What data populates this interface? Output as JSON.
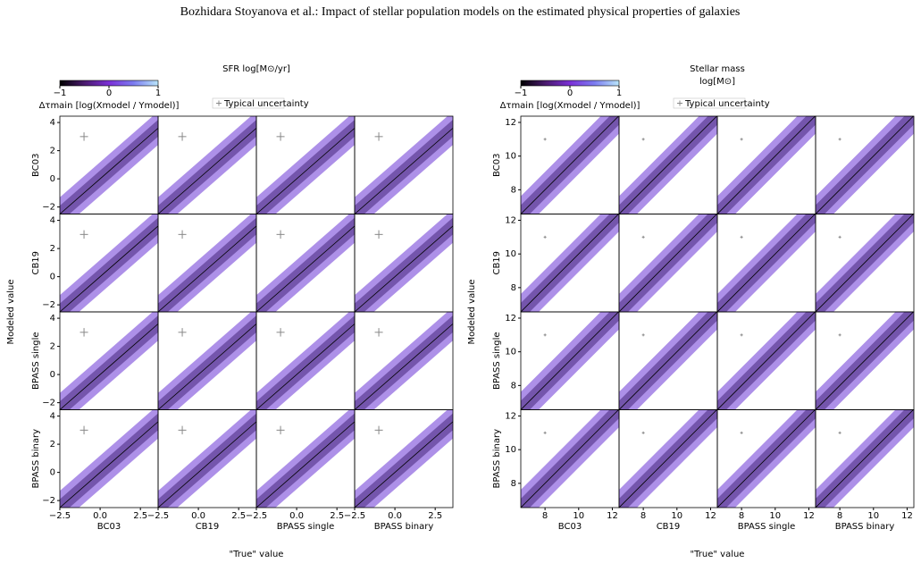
{
  "header": {
    "title": "Bozhidara Stoyanova  et al.: Impact of stellar population models on the estimated physical properties of galaxies"
  },
  "chart_data": [
    {
      "type": "scatter",
      "title_lines": [
        "SFR log[M⊙/yr]"
      ],
      "xlabel": "\"True\" value",
      "ylabel": "Modeled value",
      "row_labels": [
        "BC03",
        "CB19",
        "BPASS single",
        "BPASS binary"
      ],
      "col_labels": [
        "BC03",
        "CB19",
        "BPASS single",
        "BPASS binary"
      ],
      "xlim": [
        -2.5,
        3.6
      ],
      "ylim": [
        -2.5,
        4.45
      ],
      "xticks": [
        {
          "value": -2.5,
          "label": "−2.5"
        },
        {
          "value": 0,
          "label": "0.0"
        },
        {
          "value": 2.5,
          "label": "2.5"
        }
      ],
      "yticks": [
        {
          "value": -2,
          "label": "−2"
        },
        0,
        2,
        4
      ],
      "uncertainty": {
        "label": "Typical uncertainty",
        "x": -1,
        "y": 3,
        "xerr": 0.25,
        "yerr": 0.3
      },
      "colorbar": {
        "label": "Δτmain [log(Xmodel / Ymodel)]",
        "lim": [
          -1,
          1
        ],
        "ticks": [
          {
            "value": -1,
            "label": "−1"
          },
          0,
          1
        ],
        "colors": [
          "#000000",
          "#4a1a6e",
          "#7b2fd6",
          "#7c7cf0",
          "#b9e6fa"
        ]
      }
    },
    {
      "type": "scatter",
      "title_lines": [
        "Stellar mass",
        "log[M⊙]"
      ],
      "xlabel": "\"True\" value",
      "ylabel": "Modeled value",
      "row_labels": [
        "BC03",
        "CB19",
        "BPASS single",
        "BPASS binary"
      ],
      "col_labels": [
        "BC03",
        "CB19",
        "BPASS single",
        "BPASS binary"
      ],
      "xlim": [
        6.56,
        12.4
      ],
      "ylim": [
        6.56,
        12.37
      ],
      "xticks": [
        8,
        10,
        12
      ],
      "yticks": [
        8,
        10,
        12
      ],
      "uncertainty": {
        "label": "Typical uncertainty",
        "x": 8,
        "y": 11,
        "xerr": 0.08,
        "yerr": 0.08
      },
      "colorbar": {
        "label": "Δτmain [log(Xmodel / Ymodel)]",
        "lim": [
          -1,
          1
        ],
        "ticks": [
          {
            "value": -1,
            "label": "−1"
          },
          0,
          1
        ],
        "colors": [
          "#000000",
          "#4a1a6e",
          "#7b2fd6",
          "#7c7cf0",
          "#b9e6fa"
        ]
      }
    }
  ]
}
